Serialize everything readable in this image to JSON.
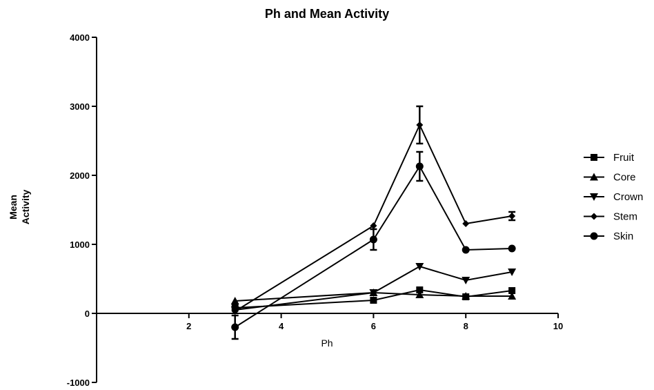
{
  "chart_data": {
    "type": "line",
    "title": "Ph and Mean Activity",
    "xlabel": "Ph",
    "ylabel_lines": [
      "Mean",
      "Activity"
    ],
    "xlim": [
      0,
      10
    ],
    "ylim": [
      -1000,
      4000
    ],
    "x_ticks": [
      2,
      4,
      6,
      8,
      10
    ],
    "x_tick_labels": [
      "2",
      "4",
      "6",
      "8",
      "10"
    ],
    "y_ticks": [
      -1000,
      0,
      1000,
      2000,
      3000,
      4000
    ],
    "y_tick_labels": [
      "-1000",
      "0",
      "1000",
      "2000",
      "3000",
      "4000"
    ],
    "grid": false,
    "legend_position": "right",
    "x": [
      3,
      6,
      7,
      8,
      9
    ],
    "series": [
      {
        "name": "Fruit",
        "marker": "square",
        "values": [
          80,
          190,
          340,
          240,
          330
        ]
      },
      {
        "name": "Core",
        "marker": "triangle-up",
        "values": [
          180,
          300,
          270,
          250,
          250
        ]
      },
      {
        "name": "Crown",
        "marker": "triangle-down",
        "values": [
          50,
          300,
          680,
          480,
          600
        ]
      },
      {
        "name": "Stem",
        "marker": "diamond",
        "values": [
          30,
          1270,
          2730,
          1300,
          1410
        ]
      },
      {
        "name": "Skin",
        "marker": "circle",
        "values": [
          -200,
          1070,
          2130,
          920,
          940
        ]
      }
    ],
    "error_bars": [
      {
        "series": "Skin",
        "x": 3,
        "low": -370,
        "high": -30
      },
      {
        "series": "Skin",
        "x": 6,
        "low": 920,
        "high": 1220
      },
      {
        "series": "Skin",
        "x": 7,
        "low": 1920,
        "high": 2340
      },
      {
        "series": "Stem",
        "x": 7,
        "low": 2460,
        "high": 3000
      },
      {
        "series": "Stem",
        "x": 9,
        "low": 1350,
        "high": 1470
      }
    ],
    "colors": {
      "line": "#000000",
      "marker": "#000000"
    }
  }
}
